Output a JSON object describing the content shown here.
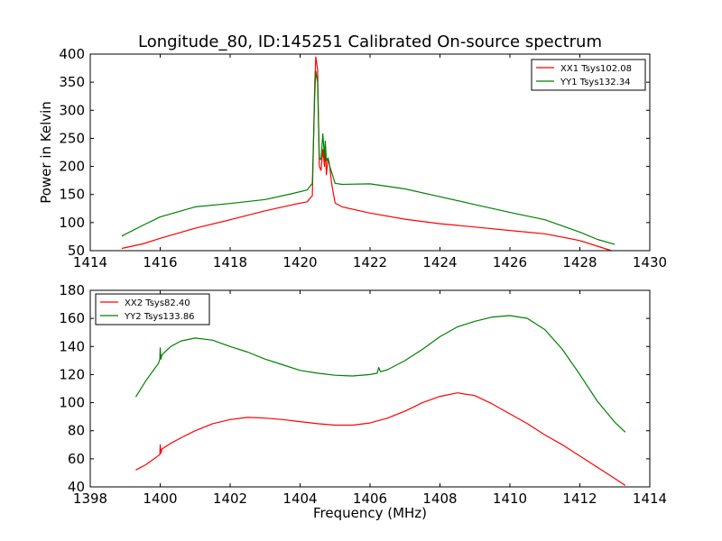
{
  "chart_data": [
    {
      "type": "line",
      "title": "Longitude_80, ID:145251 Calibrated On-source spectrum",
      "xlabel": "",
      "ylabel": "Power in Kelvin",
      "xlim": [
        1414,
        1430
      ],
      "ylim": [
        50,
        400
      ],
      "xticks": [
        1414,
        1416,
        1418,
        1420,
        1422,
        1424,
        1426,
        1428,
        1430
      ],
      "yticks": [
        50,
        100,
        150,
        200,
        250,
        300,
        350,
        400
      ],
      "legend_position": "top-right",
      "series": [
        {
          "name": "XX1 Tsys102.08",
          "color": "#ff0000",
          "x": [
            1414.9,
            1415.5,
            1416.0,
            1417.0,
            1418.0,
            1419.0,
            1419.8,
            1420.2,
            1420.35,
            1420.42,
            1420.45,
            1420.5,
            1420.55,
            1420.6,
            1420.65,
            1420.7,
            1420.72,
            1420.75,
            1420.8,
            1420.85,
            1420.9,
            1421.0,
            1421.2,
            1422.0,
            1423.0,
            1424.0,
            1425.0,
            1426.0,
            1427.0,
            1428.0,
            1428.5,
            1428.9
          ],
          "y": [
            54,
            62,
            72,
            90,
            105,
            121,
            132,
            137,
            148,
            350,
            395,
            373,
            200,
            193,
            230,
            200,
            240,
            185,
            215,
            200,
            170,
            135,
            128,
            117,
            106,
            98,
            92,
            86,
            80,
            68,
            58,
            50
          ]
        },
        {
          "name": "YY1 Tsys132.34",
          "color": "#008000",
          "x": [
            1414.9,
            1415.5,
            1416.0,
            1417.0,
            1418.0,
            1419.0,
            1419.8,
            1420.2,
            1420.35,
            1420.42,
            1420.45,
            1420.5,
            1420.55,
            1420.6,
            1420.65,
            1420.7,
            1420.72,
            1420.75,
            1420.8,
            1420.85,
            1420.9,
            1421.0,
            1421.2,
            1422.0,
            1423.0,
            1424.0,
            1425.0,
            1426.0,
            1427.0,
            1428.0,
            1428.5,
            1429.0
          ],
          "y": [
            76,
            95,
            110,
            128,
            134,
            141,
            152,
            158,
            170,
            330,
            370,
            350,
            215,
            212,
            258,
            215,
            245,
            210,
            215,
            200,
            190,
            170,
            168,
            169,
            160,
            146,
            132,
            118,
            105,
            83,
            70,
            61
          ]
        }
      ]
    },
    {
      "type": "line",
      "title": "",
      "xlabel": "Frequency (MHz)",
      "ylabel": "",
      "xlim": [
        1398,
        1414
      ],
      "ylim": [
        40,
        180
      ],
      "xticks": [
        1398,
        1400,
        1402,
        1404,
        1406,
        1408,
        1410,
        1412,
        1414
      ],
      "yticks": [
        40,
        60,
        80,
        100,
        120,
        140,
        160,
        180
      ],
      "legend_position": "top-left",
      "series": [
        {
          "name": "XX2 Tsys82.40",
          "color": "#ff0000",
          "x": [
            1399.3,
            1399.6,
            1399.99,
            1400.0,
            1400.02,
            1400.05,
            1400.3,
            1400.6,
            1401.0,
            1401.5,
            1402.0,
            1402.5,
            1403.0,
            1403.5,
            1404.0,
            1404.5,
            1405.0,
            1405.5,
            1406.0,
            1406.5,
            1407.0,
            1407.5,
            1408.0,
            1408.5,
            1409.0,
            1409.5,
            1410.0,
            1410.5,
            1411.0,
            1411.5,
            1412.0,
            1412.5,
            1413.0,
            1413.3
          ],
          "y": [
            52,
            56,
            63,
            70,
            64,
            67,
            71,
            75,
            80,
            85,
            88,
            89.5,
            89,
            88,
            86.5,
            85,
            84,
            84,
            85.5,
            89,
            94,
            100,
            104.5,
            107,
            105,
            99,
            92,
            85,
            77,
            70,
            62,
            54,
            46,
            41
          ]
        },
        {
          "name": "YY2 Tsys133.86",
          "color": "#008000",
          "x": [
            1399.3,
            1399.6,
            1399.95,
            1399.99,
            1400.0,
            1400.02,
            1400.05,
            1400.3,
            1400.6,
            1401.0,
            1401.5,
            1402.0,
            1402.5,
            1403.0,
            1403.5,
            1404.0,
            1404.5,
            1405.0,
            1405.5,
            1406.0,
            1406.2,
            1406.25,
            1406.3,
            1406.5,
            1407.0,
            1407.5,
            1408.0,
            1408.5,
            1409.0,
            1409.5,
            1410.0,
            1410.5,
            1411.0,
            1411.5,
            1412.0,
            1412.5,
            1413.0,
            1413.3
          ],
          "y": [
            104,
            116,
            128,
            131,
            139,
            131,
            134,
            140,
            144,
            146,
            144.5,
            140,
            136,
            131,
            127,
            123,
            121,
            119.5,
            119,
            120,
            121,
            125,
            122,
            123.5,
            130,
            138,
            147,
            154,
            158,
            161,
            162,
            160,
            152,
            138,
            120,
            101,
            86,
            79
          ]
        }
      ]
    }
  ]
}
